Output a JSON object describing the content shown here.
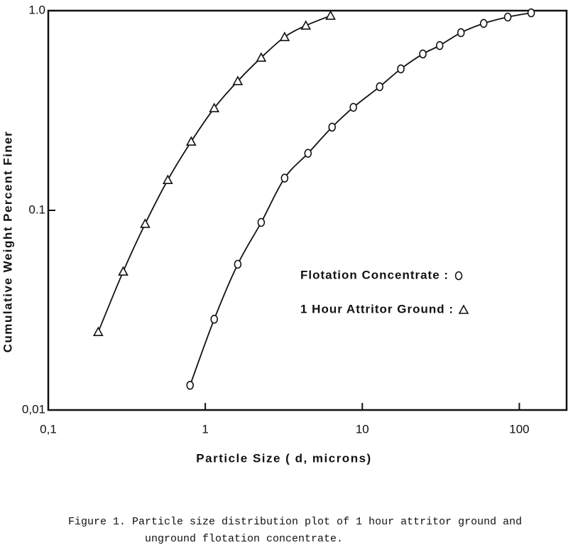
{
  "chart_data": {
    "type": "line",
    "x_label": "Particle Size ( d, microns)",
    "y_label": "Cumulative Weight Percent Finer",
    "x_scale": "log",
    "y_scale": "log",
    "xlim": [
      0.1,
      200
    ],
    "ylim": [
      0.01,
      1
    ],
    "xticks": [
      {
        "value": 0.1,
        "label": "0,1"
      },
      1,
      10,
      100
    ],
    "yticks": [
      {
        "value": 0.01,
        "label": "0,01"
      },
      0.1,
      {
        "value": 1,
        "label": "1.0"
      }
    ],
    "series": [
      {
        "name": "Flotation Concentrate :",
        "marker": "circle",
        "color": "#111111",
        "x": [
          0.8,
          1.14,
          1.61,
          2.27,
          3.2,
          4.51,
          6.42,
          8.77,
          12.9,
          17.6,
          24.3,
          31.1,
          42.5,
          59.3,
          84.4,
          119
        ],
        "values": [
          0.0133,
          0.0285,
          0.0537,
          0.087,
          0.145,
          0.193,
          0.261,
          0.328,
          0.416,
          0.511,
          0.607,
          0.669,
          0.776,
          0.863,
          0.929,
          0.975
        ]
      },
      {
        "name": "1 Hour Attritor Ground :",
        "marker": "triangle",
        "color": "#111111",
        "x": [
          0.208,
          0.3,
          0.414,
          0.577,
          0.813,
          1.14,
          1.61,
          2.27,
          3.2,
          4.37,
          6.28
        ],
        "values": [
          0.0246,
          0.0494,
          0.0856,
          0.142,
          0.221,
          0.325,
          0.444,
          0.582,
          0.738,
          0.842,
          0.944
        ]
      }
    ],
    "caption": [
      "Figure 1.  Particle size distribution plot of 1 hour attritor ground and",
      "unground flotation concentrate."
    ]
  }
}
